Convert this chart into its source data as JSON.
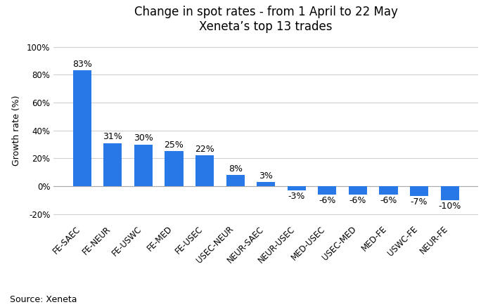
{
  "title_line1": "Change in spot rates - from 1 April to 22 May",
  "title_line2": "Xeneta’s top 13 trades",
  "categories": [
    "FE-SAEC",
    "FE-NEUR",
    "FE-USWC",
    "FE-MED",
    "FE-USEC",
    "USEC-NEUR",
    "NEUR-SAEC",
    "NEUR-USEC",
    "MED-USEC",
    "USEC-MED",
    "MED-FE",
    "USWC-FE",
    "NEUR-FE"
  ],
  "values": [
    83,
    31,
    30,
    25,
    22,
    8,
    3,
    -3,
    -6,
    -6,
    -6,
    -7,
    -10
  ],
  "bar_color": "#2878e8",
  "ylabel": "Growth rate (%)",
  "ylim": [
    -25,
    105
  ],
  "yticks": [
    -20,
    0,
    20,
    40,
    60,
    80,
    100
  ],
  "source_text": "Source: Xeneta",
  "title_fontsize": 12,
  "label_fontsize": 9,
  "tick_fontsize": 8.5,
  "ylabel_fontsize": 9,
  "source_fontsize": 9,
  "background_color": "#ffffff",
  "grid_color": "#d0d0d0"
}
